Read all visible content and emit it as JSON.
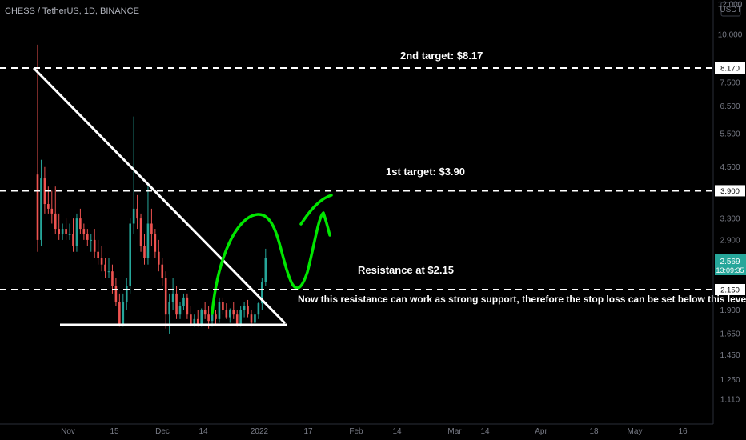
{
  "header": {
    "symbol_line": "CHESS / TetherUS, 1D, BINANCE"
  },
  "price_axis": {
    "currency": "USDT",
    "ticks": [
      "12.000",
      "10.000",
      "8.170",
      "7.500",
      "6.500",
      "5.500",
      "4.500",
      "3.900",
      "3.300",
      "2.900",
      "2.150",
      "1.900",
      "1.650",
      "1.450",
      "1.250",
      "1.110"
    ],
    "current_price": "2.569",
    "countdown": "13:09:35"
  },
  "time_axis": {
    "ticks": [
      "Nov",
      "15",
      "Dec",
      "14",
      "2022",
      "17",
      "Feb",
      "14",
      "Mar",
      "14",
      "Apr",
      "18",
      "May",
      "16"
    ]
  },
  "annotations": {
    "target2": "2nd target: $8.17",
    "target1": "1st target: $3.90",
    "resistance": "Resistance at $2.15",
    "note": "Now this resistance can work as strong support, therefore the stop loss can be set below this level."
  },
  "colors": {
    "background": "#000000",
    "up_candle": "#26a69a",
    "down_candle": "#ef5350",
    "drawing": "#ffffff",
    "projection": "#00e600",
    "axis_text": "#787b86",
    "price_tag": "#26a69a"
  },
  "chart_data": {
    "type": "candlestick",
    "symbol": "CHESS / TetherUS",
    "interval": "1D",
    "exchange": "BINANCE",
    "y_scale": "log",
    "ylim": [
      1.0,
      12.0
    ],
    "levels": [
      {
        "label": "2nd target: $8.17",
        "price": 8.17
      },
      {
        "label": "1st target: $3.90",
        "price": 3.9
      },
      {
        "label": "Resistance at $2.15",
        "price": 2.15
      }
    ],
    "last_price": 2.569,
    "candles": [
      [
        4.3,
        9.4,
        2.7,
        2.9
      ],
      [
        2.9,
        4.7,
        2.8,
        4.2
      ],
      [
        4.2,
        4.5,
        3.4,
        3.6
      ],
      [
        3.6,
        4.0,
        3.4,
        3.5
      ],
      [
        3.5,
        3.9,
        3.2,
        3.4
      ],
      [
        3.4,
        4.0,
        3.0,
        3.1
      ],
      [
        3.1,
        3.4,
        2.9,
        3.0
      ],
      [
        3.0,
        3.2,
        2.9,
        3.1
      ],
      [
        3.1,
        3.3,
        2.9,
        3.0
      ],
      [
        3.0,
        3.2,
        2.9,
        3.0
      ],
      [
        3.0,
        3.3,
        2.7,
        2.8
      ],
      [
        2.8,
        3.4,
        2.7,
        3.3
      ],
      [
        3.3,
        3.5,
        3.0,
        3.1
      ],
      [
        3.1,
        3.2,
        2.9,
        3.0
      ],
      [
        3.0,
        3.1,
        2.8,
        2.9
      ],
      [
        2.9,
        3.0,
        2.7,
        2.9
      ],
      [
        2.9,
        3.1,
        2.6,
        2.7
      ],
      [
        2.7,
        2.9,
        2.5,
        2.6
      ],
      [
        2.6,
        2.8,
        2.4,
        2.5
      ],
      [
        2.5,
        2.6,
        2.3,
        2.4
      ],
      [
        2.4,
        2.6,
        2.3,
        2.4
      ],
      [
        2.4,
        2.5,
        2.1,
        2.2
      ],
      [
        2.2,
        2.3,
        1.95,
        2.0
      ],
      [
        2.0,
        2.1,
        1.72,
        1.75
      ],
      [
        1.75,
        2.1,
        1.72,
        2.0
      ],
      [
        2.0,
        2.3,
        1.9,
        2.2
      ],
      [
        2.2,
        3.3,
        2.1,
        3.2
      ],
      [
        3.2,
        6.1,
        3.0,
        3.5
      ],
      [
        3.5,
        3.8,
        3.1,
        3.3
      ],
      [
        3.3,
        3.4,
        2.7,
        2.8
      ],
      [
        2.8,
        3.0,
        2.5,
        2.6
      ],
      [
        2.6,
        4.0,
        2.5,
        3.2
      ],
      [
        3.2,
        3.5,
        2.8,
        3.0
      ],
      [
        3.0,
        3.1,
        2.6,
        2.7
      ],
      [
        2.7,
        2.9,
        2.4,
        2.5
      ],
      [
        2.5,
        2.6,
        2.2,
        2.3
      ],
      [
        2.3,
        2.4,
        1.7,
        1.85
      ],
      [
        1.85,
        2.1,
        1.65,
        2.0
      ],
      [
        2.0,
        2.3,
        1.9,
        2.1
      ],
      [
        2.1,
        2.2,
        1.8,
        1.85
      ],
      [
        1.85,
        2.0,
        1.8,
        1.95
      ],
      [
        1.95,
        2.1,
        1.9,
        2.05
      ],
      [
        2.05,
        2.1,
        1.8,
        1.85
      ],
      [
        1.85,
        1.95,
        1.72,
        1.75
      ],
      [
        1.75,
        1.85,
        1.72,
        1.8
      ],
      [
        1.8,
        1.9,
        1.72,
        1.75
      ],
      [
        1.75,
        1.92,
        1.72,
        1.9
      ],
      [
        1.9,
        2.0,
        1.8,
        1.85
      ],
      [
        1.85,
        1.95,
        1.7,
        1.78
      ],
      [
        1.78,
        1.9,
        1.72,
        1.85
      ],
      [
        1.85,
        1.9,
        1.75,
        1.8
      ],
      [
        1.8,
        2.05,
        1.76,
        2.0
      ],
      [
        2.0,
        2.05,
        1.85,
        1.9
      ],
      [
        1.9,
        1.98,
        1.8,
        1.82
      ],
      [
        1.82,
        1.92,
        1.76,
        1.9
      ],
      [
        1.9,
        2.0,
        1.8,
        1.85
      ],
      [
        1.85,
        1.9,
        1.72,
        1.75
      ],
      [
        1.75,
        1.95,
        1.72,
        1.9
      ],
      [
        1.9,
        2.0,
        1.82,
        1.95
      ],
      [
        1.95,
        2.02,
        1.82,
        1.85
      ],
      [
        1.85,
        1.9,
        1.72,
        1.76
      ],
      [
        1.76,
        1.88,
        1.72,
        1.85
      ],
      [
        1.85,
        2.0,
        1.8,
        1.98
      ],
      [
        1.98,
        2.3,
        1.9,
        2.25
      ],
      [
        2.25,
        2.75,
        2.2,
        2.6
      ]
    ]
  }
}
